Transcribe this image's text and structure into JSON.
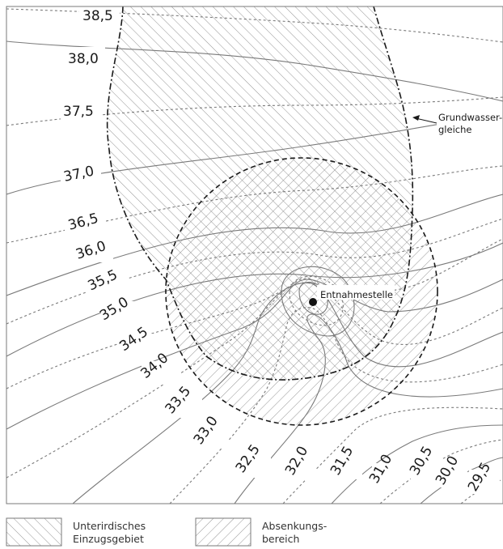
{
  "isolines": [
    "38,5",
    "38,0",
    "37,5",
    "37,0",
    "36,5",
    "36,0",
    "35,5",
    "35,0",
    "34,5",
    "34,0",
    "33,5",
    "33,0",
    "32,5",
    "32,0",
    "31,5",
    "31,0",
    "30,5",
    "30,0",
    "29,5"
  ],
  "labels": {
    "well": "Entnahmestelle",
    "groundwater_line_1": "Grundwasser-",
    "groundwater_line_2": "gleiche"
  },
  "legend": {
    "catchment_line_1": "Unterirdisches",
    "catchment_line_2": "Einzugsgebiet",
    "drawdown_line_1": "Absenkungs-",
    "drawdown_line_2": "bereich"
  }
}
